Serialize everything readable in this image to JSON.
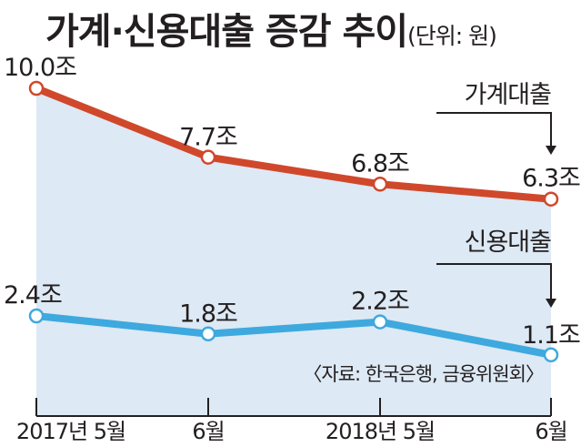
{
  "title": "가계·신용대출 증감 추이",
  "unit": "(단위: 원)",
  "source": "〈자료: 한국은행, 금융위원회〉",
  "colors": {
    "household": "#d0482b",
    "credit": "#3ea9de",
    "area": "#dde9f4",
    "axis": "#231f20"
  },
  "chart_data": {
    "type": "line",
    "categories": [
      "2017년 5월",
      "6월",
      "2018년 5월",
      "6월"
    ],
    "ylim": [
      0,
      11
    ],
    "series": [
      {
        "name": "가계대출",
        "values": [
          10.0,
          7.7,
          6.8,
          6.3
        ],
        "labels": [
          "10.0조",
          "7.7조",
          "6.8조",
          "6.3조"
        ]
      },
      {
        "name": "신용대출",
        "values": [
          2.4,
          1.8,
          2.2,
          1.1
        ],
        "labels": [
          "2.4조",
          "1.8조",
          "2.2조",
          "1.1조"
        ]
      }
    ]
  }
}
